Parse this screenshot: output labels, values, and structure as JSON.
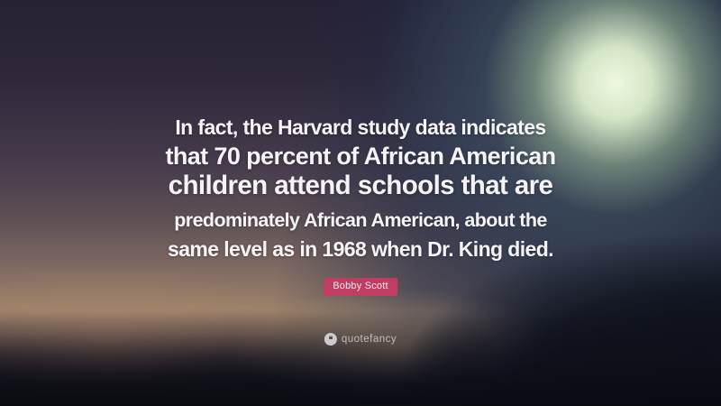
{
  "quote": {
    "lines": [
      "In fact, the Harvard study data indicates",
      "that 70 percent of African American",
      "children attend schools that are",
      "predominately African American, about the",
      "same level as in 1968 when Dr. King died."
    ],
    "author": "Bobby Scott"
  },
  "watermark": {
    "brand": "quotefancy",
    "icon": "quote-marks-icon",
    "icon_glyph": "❝"
  },
  "colors": {
    "author_badge_bg": "#c13c62",
    "quote_text": "#f5f3f6",
    "glow": "#eef8e0",
    "sky_top_left": "#272134",
    "sky_top_right": "#1f2844",
    "sunset_band": "#9c8169",
    "bottom_silhouette": "#0d0f16"
  }
}
